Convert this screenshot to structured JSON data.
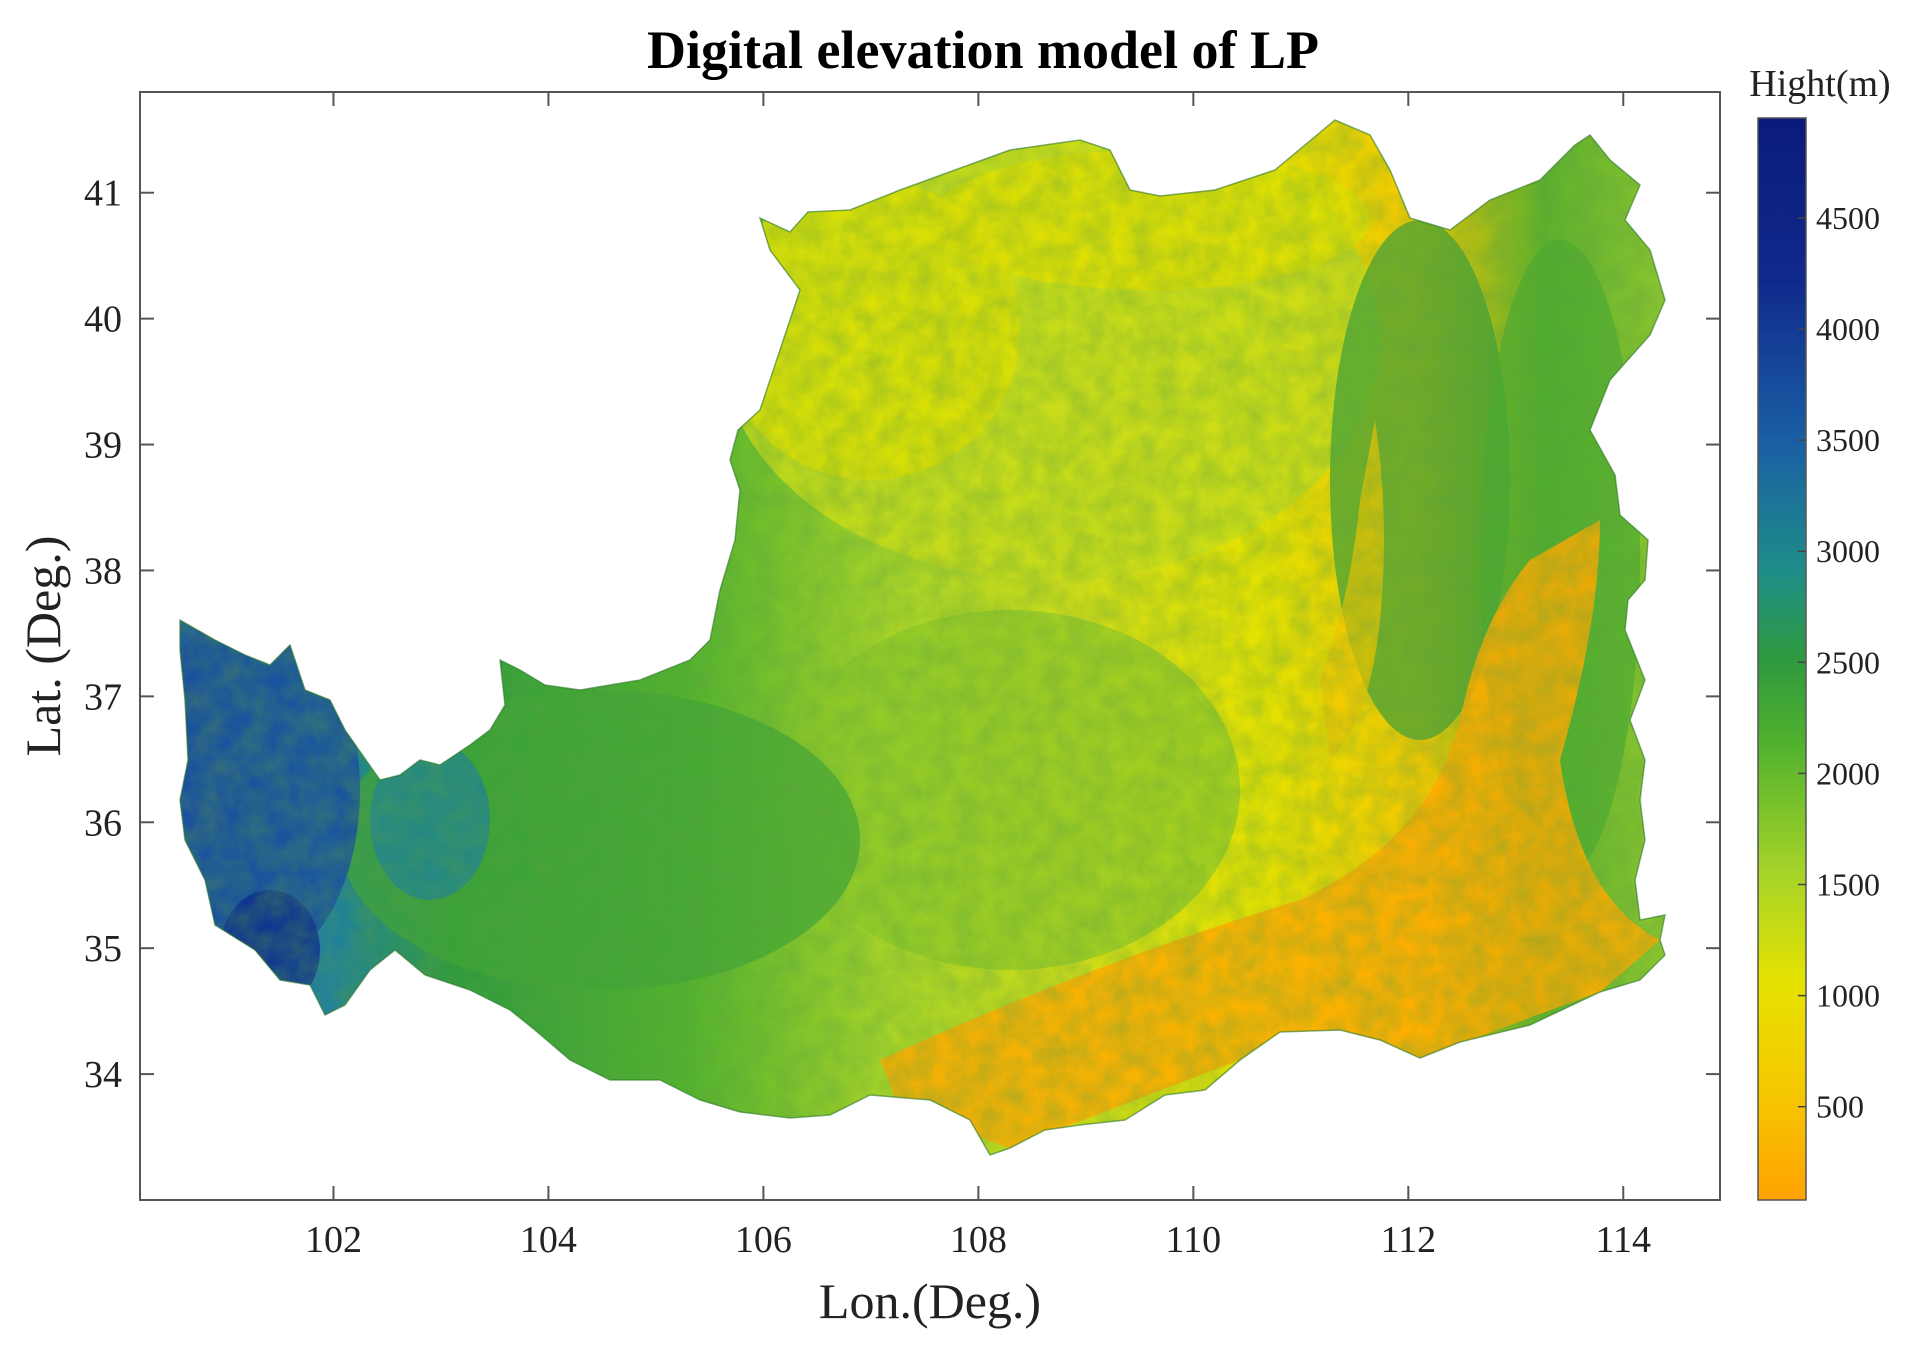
{
  "chart_data": {
    "type": "heatmap",
    "title": "Digital elevation model of LP",
    "xlabel": "Lon.(Deg.)",
    "ylabel": "Lat. (Deg.)",
    "xlim": [
      100.2,
      114.9
    ],
    "ylim": [
      33.0,
      41.8
    ],
    "x_ticks": [
      "102",
      "104",
      "106",
      "108",
      "110",
      "112",
      "114"
    ],
    "y_ticks": [
      "34",
      "35",
      "36",
      "37",
      "38",
      "39",
      "40",
      "41"
    ],
    "x_tick_values": [
      102,
      104,
      106,
      108,
      110,
      112,
      114
    ],
    "y_tick_values": [
      34,
      35,
      36,
      37,
      38,
      39,
      40,
      41
    ],
    "colorbar": {
      "title": "Hight(m)",
      "range": [
        80,
        4950
      ],
      "tick_labels": [
        "500",
        "1000",
        "1500",
        "2000",
        "2500",
        "3000",
        "3500",
        "4000",
        "4500"
      ],
      "tick_values": [
        500,
        1000,
        1500,
        2000,
        2500,
        3000,
        3500,
        4000,
        4500
      ],
      "colors": [
        "#ffa200",
        "#f5c800",
        "#e6e200",
        "#a8d428",
        "#52b22e",
        "#2e9a3e",
        "#1e8e88",
        "#1a5fa4",
        "#102a8c",
        "#0a1a7a"
      ]
    }
  }
}
